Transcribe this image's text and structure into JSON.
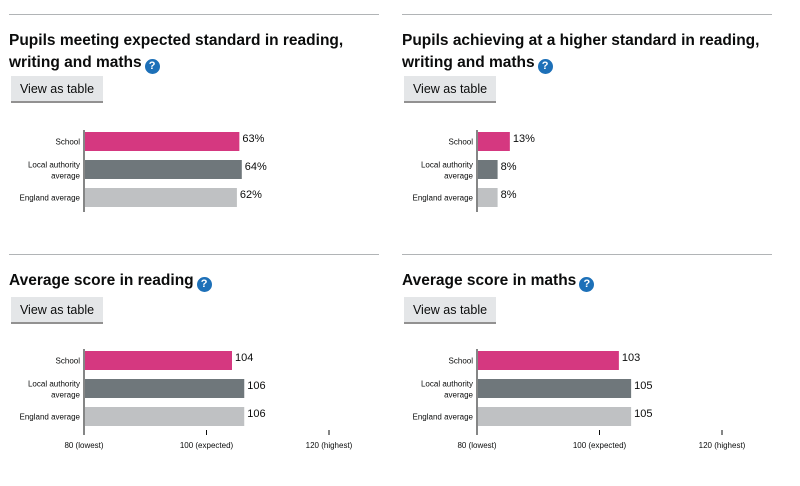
{
  "button_label": "View as table",
  "help_icon": "?",
  "colors": {
    "school": "#d53880",
    "local_authority": "#6f777b",
    "england": "#bfc1c3",
    "axis": "#0b0c0c"
  },
  "panels": [
    {
      "title": "Pupils meeting expected standard in reading, writing and maths"
    },
    {
      "title": "Pupils achieving at a higher standard in reading, writing and maths"
    },
    {
      "title": "Average score in reading"
    },
    {
      "title": "Average score in maths"
    }
  ],
  "chart_data": [
    {
      "type": "bar",
      "orientation": "horizontal",
      "categories": [
        "School",
        "Local authority average",
        "England average"
      ],
      "values": [
        63,
        64,
        62
      ],
      "value_labels": [
        "63%",
        "64%",
        "62%"
      ],
      "xlim": [
        0,
        100
      ],
      "ticks": []
    },
    {
      "type": "bar",
      "orientation": "horizontal",
      "categories": [
        "School",
        "Local authority average",
        "England average"
      ],
      "values": [
        13,
        8,
        8
      ],
      "value_labels": [
        "13%",
        "8%",
        "8%"
      ],
      "xlim": [
        0,
        100
      ],
      "ticks": []
    },
    {
      "type": "bar",
      "orientation": "horizontal",
      "categories": [
        "School",
        "Local authority average",
        "England average"
      ],
      "values": [
        104,
        106,
        106
      ],
      "value_labels": [
        "104",
        "106",
        "106"
      ],
      "xlim": [
        80,
        120
      ],
      "ticks": [
        {
          "value": 80,
          "label": "80 (lowest)"
        },
        {
          "value": 100,
          "label": "100 (expected)"
        },
        {
          "value": 120,
          "label": "120 (highest)"
        }
      ]
    },
    {
      "type": "bar",
      "orientation": "horizontal",
      "categories": [
        "School",
        "Local authority average",
        "England average"
      ],
      "values": [
        103,
        105,
        105
      ],
      "value_labels": [
        "103",
        "105",
        "105"
      ],
      "xlim": [
        80,
        120
      ],
      "ticks": [
        {
          "value": 80,
          "label": "80 (lowest)"
        },
        {
          "value": 100,
          "label": "100 (expected)"
        },
        {
          "value": 120,
          "label": "120 (highest)"
        }
      ]
    }
  ]
}
